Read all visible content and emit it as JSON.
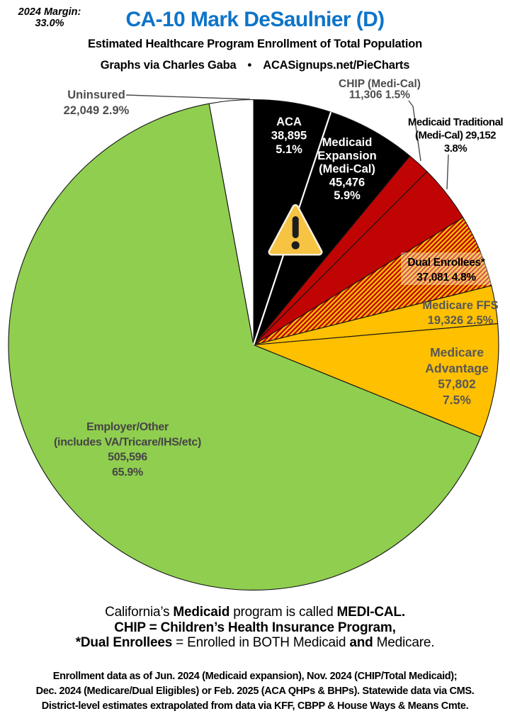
{
  "margin_note": {
    "line1": "2024 Margin:",
    "line2": "33.0%"
  },
  "header": {
    "title": "CA-10 Mark DeSaulnier (D)",
    "title_color": "#0E74C8",
    "subtitle": "Estimated Healthcare Program Enrollment of Total Population",
    "byline": "Graphs via Charles Gaba  •  ACASignups.net/PieCharts"
  },
  "chart_data": {
    "type": "pie",
    "title": "Estimated Healthcare Program Enrollment of Total Population",
    "direction": "clockwise",
    "start_angle_deg": 0,
    "units": "people",
    "segments": [
      {
        "id": "aca",
        "name": "ACA",
        "enrollment": 38895,
        "pct": 5.1,
        "fill": "#000000",
        "text_color": "#FFFFFF",
        "label_lines": [
          "ACA",
          "38,895",
          "5.1%"
        ]
      },
      {
        "id": "medicaid-expansion",
        "name": "Medicaid Expansion (Medi-Cal)",
        "enrollment": 45476,
        "pct": 5.9,
        "fill": "#000000",
        "text_color": "#FFFFFF",
        "label_lines": [
          "Medicaid",
          "Expansion",
          "(Medi-Cal)",
          "45,476",
          "5.9%"
        ]
      },
      {
        "id": "chip",
        "name": "CHIP (Medi-Cal)",
        "enrollment": 11306,
        "pct": 1.5,
        "fill": "#C00404",
        "text_color": "#4D4D4D",
        "label_lines": [
          "CHIP (Medi-Cal)",
          "11,306 1.5%"
        ]
      },
      {
        "id": "medicaid-traditional",
        "name": "Medicaid Traditional (Medi-Cal)",
        "enrollment": 29152,
        "pct": 3.8,
        "fill": "#C00404",
        "text_color": "#000000",
        "label_lines": [
          "Medicaid Traditional",
          "(Medi-Cal) 29,152",
          "3.8%"
        ]
      },
      {
        "id": "dual",
        "name": "Dual Enrollees*",
        "enrollment": 37081,
        "pct": 4.8,
        "fill": "hatch",
        "hatch_colors": [
          "#C00404",
          "#FFC000"
        ],
        "text_color": "#000000",
        "label_lines": [
          "Dual Enrollees*",
          "37,081 4.8%"
        ]
      },
      {
        "id": "medicare-ffs",
        "name": "Medicare FFS",
        "enrollment": 19326,
        "pct": 2.5,
        "fill": "#FFC000",
        "text_color": "#575757",
        "label_lines": [
          "Medicare FFS",
          "19,326 2.5%"
        ]
      },
      {
        "id": "medicare-advantage",
        "name": "Medicare Advantage",
        "enrollment": 57802,
        "pct": 7.5,
        "fill": "#FFC000",
        "text_color": "#575757",
        "label_lines": [
          "Medicare",
          "Advantage",
          "57,802",
          "7.5%"
        ]
      },
      {
        "id": "employer",
        "name": "Employer/Other (includes VA/Tricare/IHS/etc)",
        "enrollment": 505596,
        "pct": 65.9,
        "fill": "#90CE50",
        "text_color": "#454545",
        "label_lines": [
          "Employer/Other",
          "(includes VA/Tricare/IHS/etc)",
          "505,596",
          "65.9%"
        ]
      },
      {
        "id": "uninsured",
        "name": "Uninsured",
        "enrollment": 22049,
        "pct": 2.9,
        "fill": "#FFFFFF",
        "text_color": "#4D4D4D",
        "label_lines": [
          "Uninsured",
          "22,049 2.9%"
        ]
      }
    ]
  },
  "warning_overlay": {
    "icon": "exclamation-triangle",
    "fill": "#F7C343",
    "border": "#F8F1DE",
    "mark_color": "#1D1D1D"
  },
  "notes": {
    "lines": [
      [
        {
          "t": "California’s ",
          "b": false
        },
        {
          "t": "Medicaid",
          "b": true
        },
        {
          "t": " program is called ",
          "b": false
        },
        {
          "t": "MEDI-CAL.",
          "b": true
        }
      ],
      [
        {
          "t": "CHIP",
          "b": true
        },
        {
          "t": " = ",
          "b": true
        },
        {
          "t": "Children’s Health Insurance Program,",
          "b": true
        }
      ],
      [
        {
          "t": "*Dual Enrollees",
          "b": true
        },
        {
          "t": " = Enrolled in BOTH Medicaid ",
          "b": false
        },
        {
          "t": "and",
          "b": true
        },
        {
          "t": " Medicare.",
          "b": false
        }
      ]
    ]
  },
  "footer": {
    "lines": [
      "Enrollment data as of Jun. 2024 (Medicaid expansion), Nov. 2024 (CHIP/Total Medicaid);",
      "Dec. 2024 (Medicare/Dual Eligibles) or Feb. 2025 (ACA QHPs & BHPs). Statewide data via CMS.",
      "District-level estimates extrapolated from data via KFF, CBPP & House Ways & Means Cmte."
    ]
  }
}
